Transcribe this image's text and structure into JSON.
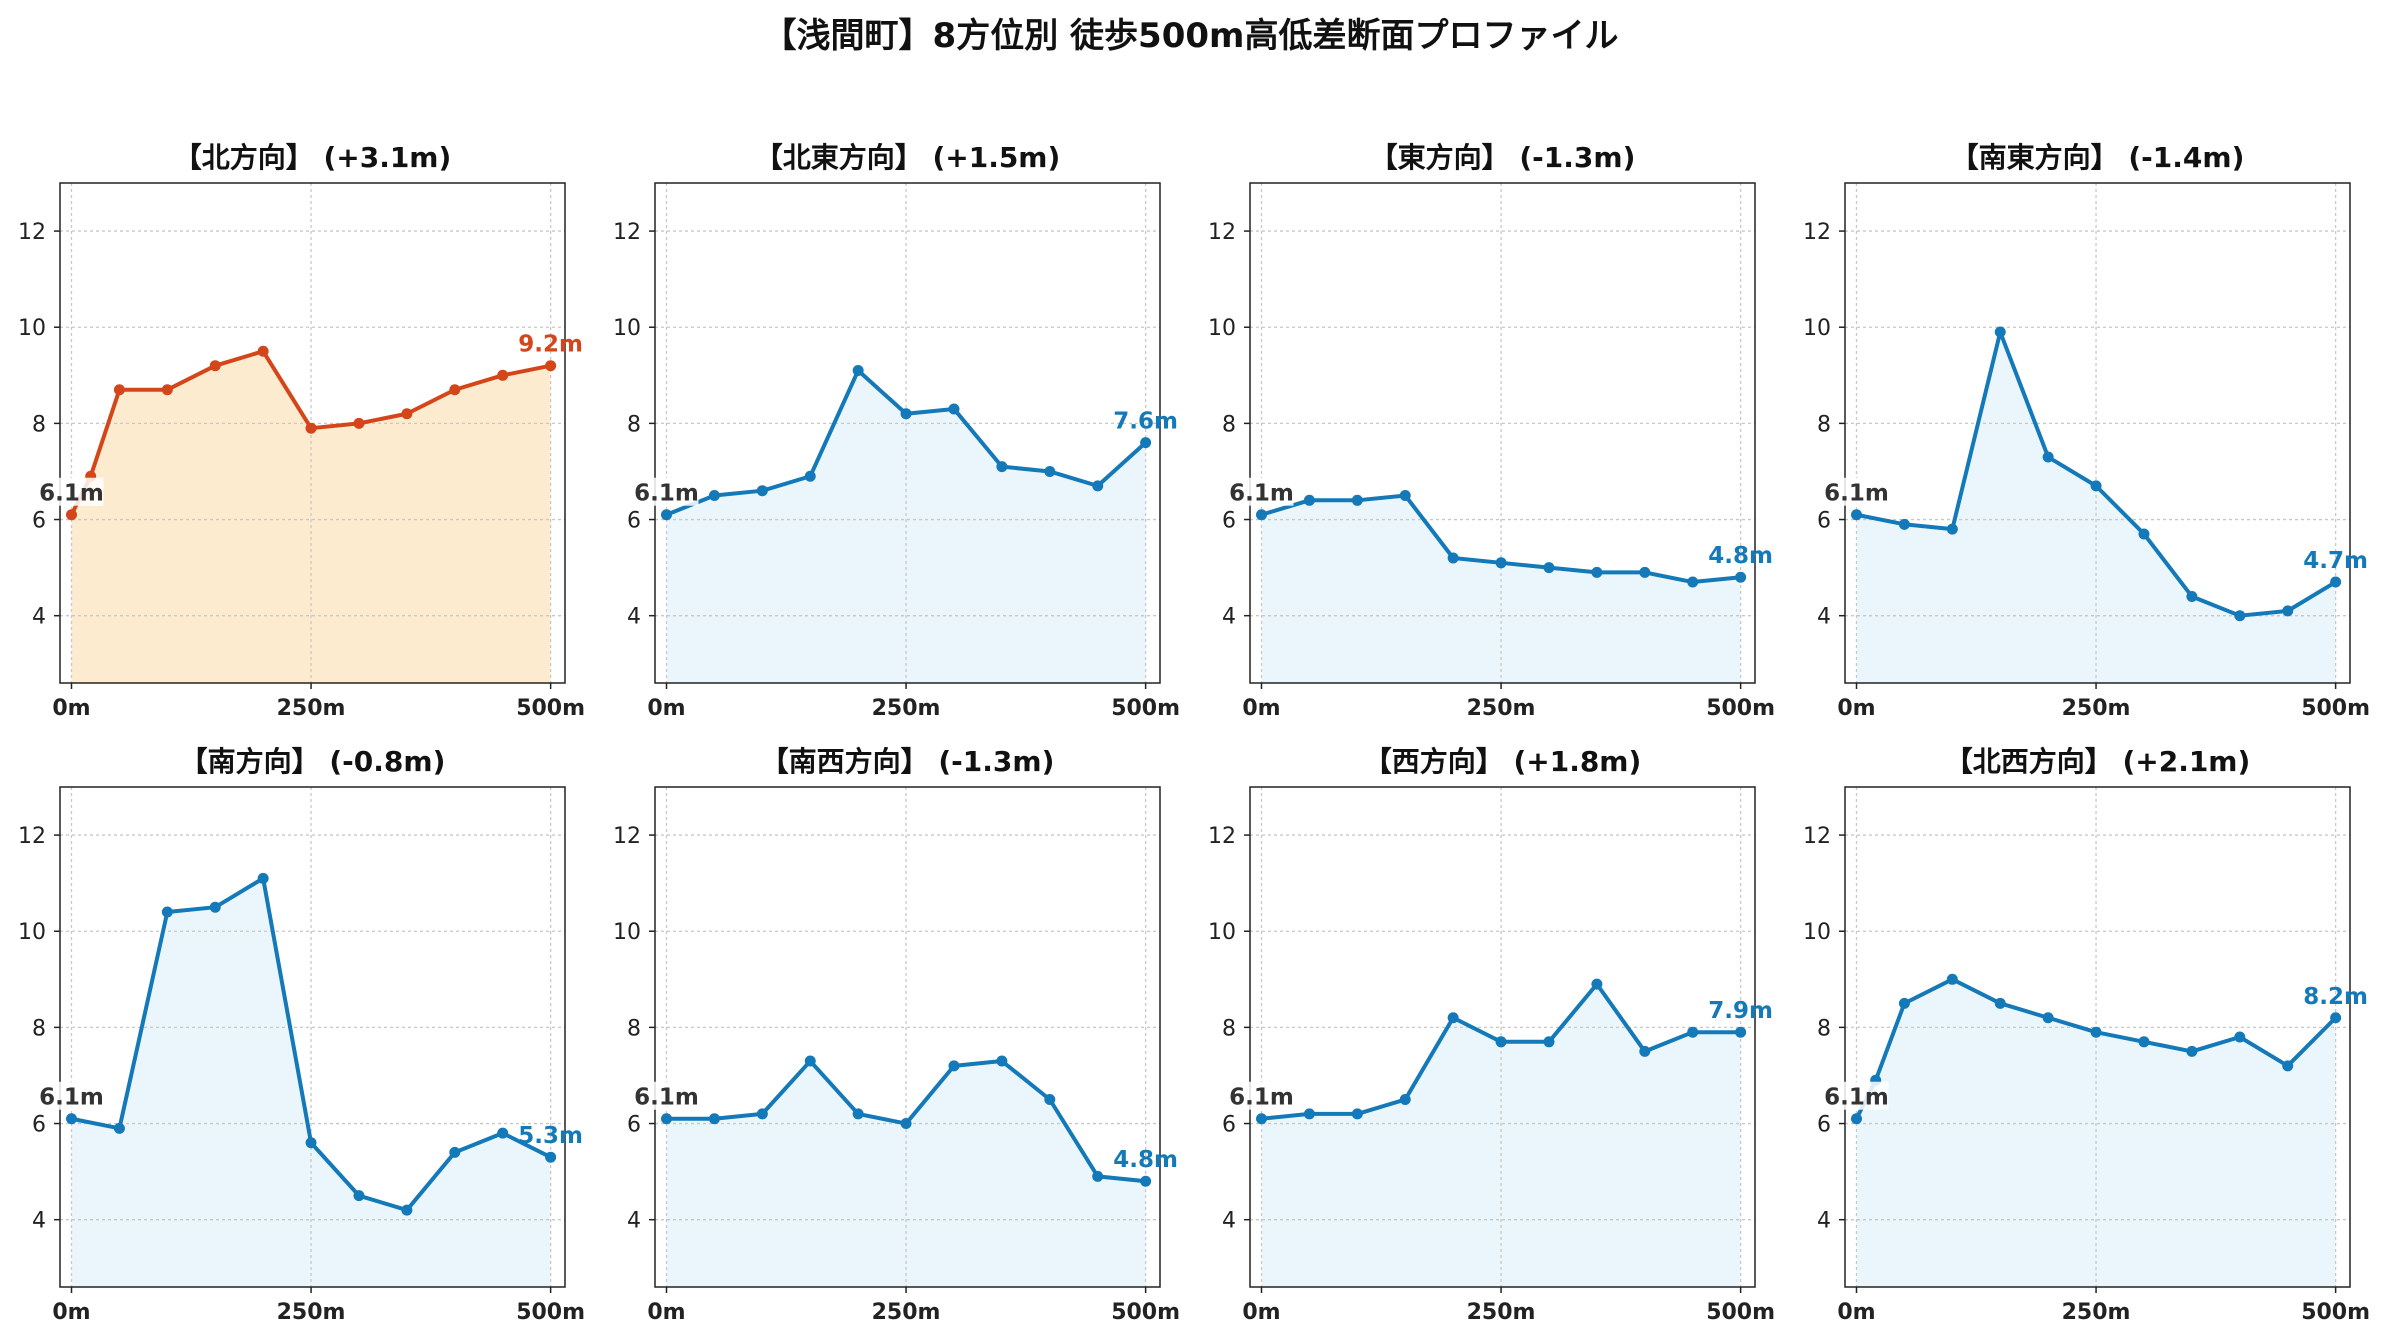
{
  "suptitle": "【浅間町】8方位別 徒歩500m高低差断面プロファイル",
  "colors": {
    "highlight_line": "#d4461a",
    "highlight_fill": "#fdebd0",
    "line": "#1479b8",
    "fill": "#eaf6fb",
    "start_label": "#333333",
    "grid": "#c8c8c8"
  },
  "chart_data": [
    {
      "type": "line",
      "title": "【北方向】 (+3.1m)",
      "highlight": true,
      "x": [
        0,
        20,
        50,
        100,
        150,
        200,
        250,
        300,
        350,
        400,
        450,
        500
      ],
      "y": [
        6.1,
        6.9,
        8.7,
        8.7,
        9.2,
        9.5,
        7.9,
        8.0,
        8.2,
        8.7,
        9.0,
        9.2
      ],
      "start_label": "6.1m",
      "end_label": "9.2m",
      "xticks": [
        "0m",
        "250m",
        "500m"
      ],
      "yticks": [
        4,
        6,
        8,
        10,
        12
      ],
      "xlim": [
        -12,
        515
      ],
      "ylim": [
        2.6,
        13.0
      ],
      "grid": true
    },
    {
      "type": "line",
      "title": "【北東方向】 (+1.5m)",
      "highlight": false,
      "x": [
        0,
        50,
        100,
        150,
        200,
        250,
        300,
        350,
        400,
        450,
        500
      ],
      "y": [
        6.1,
        6.5,
        6.6,
        6.9,
        9.1,
        8.2,
        8.3,
        7.1,
        7.0,
        6.7,
        7.6
      ],
      "start_label": "6.1m",
      "end_label": "7.6m",
      "xticks": [
        "0m",
        "250m",
        "500m"
      ],
      "yticks": [
        4,
        6,
        8,
        10,
        12
      ],
      "xlim": [
        -12,
        515
      ],
      "ylim": [
        2.6,
        13.0
      ],
      "grid": true
    },
    {
      "type": "line",
      "title": "【東方向】 (-1.3m)",
      "highlight": false,
      "x": [
        0,
        50,
        100,
        150,
        200,
        250,
        300,
        350,
        400,
        450,
        500
      ],
      "y": [
        6.1,
        6.4,
        6.4,
        6.5,
        5.2,
        5.1,
        5.0,
        4.9,
        4.9,
        4.7,
        4.8
      ],
      "start_label": "6.1m",
      "end_label": "4.8m",
      "xticks": [
        "0m",
        "250m",
        "500m"
      ],
      "yticks": [
        4,
        6,
        8,
        10,
        12
      ],
      "xlim": [
        -12,
        515
      ],
      "ylim": [
        2.6,
        13.0
      ],
      "grid": true
    },
    {
      "type": "line",
      "title": "【南東方向】 (-1.4m)",
      "highlight": false,
      "x": [
        0,
        50,
        100,
        150,
        200,
        250,
        300,
        350,
        400,
        450,
        500
      ],
      "y": [
        6.1,
        5.9,
        5.8,
        9.9,
        7.3,
        6.7,
        5.7,
        4.4,
        4.0,
        4.1,
        4.7
      ],
      "start_label": "6.1m",
      "end_label": "4.7m",
      "xticks": [
        "0m",
        "250m",
        "500m"
      ],
      "yticks": [
        4,
        6,
        8,
        10,
        12
      ],
      "xlim": [
        -12,
        515
      ],
      "ylim": [
        2.6,
        13.0
      ],
      "grid": true
    },
    {
      "type": "line",
      "title": "【南方向】 (-0.8m)",
      "highlight": false,
      "x": [
        0,
        50,
        100,
        150,
        200,
        250,
        300,
        350,
        400,
        450,
        500
      ],
      "y": [
        6.1,
        5.9,
        10.4,
        10.5,
        11.1,
        5.6,
        4.5,
        4.2,
        5.4,
        5.8,
        5.3
      ],
      "start_label": "6.1m",
      "end_label": "5.3m",
      "xticks": [
        "0m",
        "250m",
        "500m"
      ],
      "yticks": [
        4,
        6,
        8,
        10,
        12
      ],
      "xlim": [
        -12,
        515
      ],
      "ylim": [
        2.6,
        13.0
      ],
      "grid": true
    },
    {
      "type": "line",
      "title": "【南西方向】 (-1.3m)",
      "highlight": false,
      "x": [
        0,
        50,
        100,
        150,
        200,
        250,
        300,
        350,
        400,
        450,
        500
      ],
      "y": [
        6.1,
        6.1,
        6.2,
        7.3,
        6.2,
        6.0,
        7.2,
        7.3,
        6.5,
        4.9,
        4.8
      ],
      "start_label": "6.1m",
      "end_label": "4.8m",
      "xticks": [
        "0m",
        "250m",
        "500m"
      ],
      "yticks": [
        4,
        6,
        8,
        10,
        12
      ],
      "xlim": [
        -12,
        515
      ],
      "ylim": [
        2.6,
        13.0
      ],
      "grid": true
    },
    {
      "type": "line",
      "title": "【西方向】 (+1.8m)",
      "highlight": false,
      "x": [
        0,
        50,
        100,
        150,
        200,
        250,
        300,
        350,
        400,
        450,
        500
      ],
      "y": [
        6.1,
        6.2,
        6.2,
        6.5,
        8.2,
        7.7,
        7.7,
        8.9,
        7.5,
        7.9,
        7.9
      ],
      "start_label": "6.1m",
      "end_label": "7.9m",
      "xticks": [
        "0m",
        "250m",
        "500m"
      ],
      "yticks": [
        4,
        6,
        8,
        10,
        12
      ],
      "xlim": [
        -12,
        515
      ],
      "ylim": [
        2.6,
        13.0
      ],
      "grid": true
    },
    {
      "type": "line",
      "title": "【北西方向】 (+2.1m)",
      "highlight": false,
      "x": [
        0,
        20,
        50,
        100,
        150,
        200,
        250,
        300,
        350,
        400,
        450,
        500
      ],
      "y": [
        6.1,
        6.9,
        8.5,
        9.0,
        8.5,
        8.2,
        7.9,
        7.7,
        7.5,
        7.8,
        7.2,
        8.2
      ],
      "start_label": "6.1m",
      "end_label": "8.2m",
      "xticks": [
        "0m",
        "250m",
        "500m"
      ],
      "yticks": [
        4,
        6,
        8,
        10,
        12
      ],
      "xlim": [
        -12,
        515
      ],
      "ylim": [
        2.6,
        13.0
      ],
      "grid": true
    }
  ]
}
